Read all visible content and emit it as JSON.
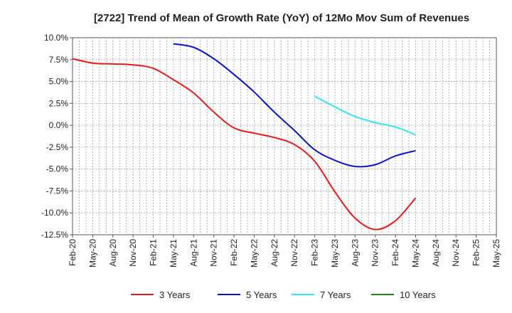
{
  "chart_data": {
    "type": "line",
    "title": "[2722]  Trend of Mean of Growth Rate (YoY) of 12Mo Mov Sum of Revenues",
    "xlabel": "",
    "ylabel": "",
    "categories": [
      "Feb-20",
      "May-20",
      "Aug-20",
      "Nov-20",
      "Feb-21",
      "May-21",
      "Aug-21",
      "Nov-21",
      "Feb-22",
      "May-22",
      "Aug-22",
      "Nov-22",
      "Feb-23",
      "May-23",
      "Aug-23",
      "Nov-23",
      "Feb-24",
      "May-24",
      "Aug-24",
      "Nov-24",
      "Feb-25",
      "May-25"
    ],
    "ylim": [
      -12.5,
      10.0
    ],
    "yticks": [
      "10.0%",
      "7.5%",
      "5.0%",
      "2.5%",
      "0.0%",
      "-2.5%",
      "-5.0%",
      "-7.5%",
      "-10.0%",
      "-12.5%"
    ],
    "grid": true,
    "legend_position": "bottom",
    "series": [
      {
        "name": "3 Years",
        "color": "#e31a1c",
        "values": [
          7.6,
          7.1,
          7.0,
          6.9,
          6.5,
          5.2,
          3.7,
          1.5,
          -0.3,
          -0.9,
          -1.4,
          -2.2,
          -4.1,
          -7.6,
          -10.6,
          -11.9,
          -10.9,
          -8.3,
          null,
          null,
          null,
          null
        ]
      },
      {
        "name": "5 Years",
        "color": "#0a14c8",
        "values": [
          null,
          null,
          null,
          null,
          null,
          9.3,
          8.9,
          7.6,
          5.8,
          3.8,
          1.5,
          -0.6,
          -2.8,
          -4.0,
          -4.7,
          -4.5,
          -3.5,
          -2.9,
          null,
          null,
          null,
          null
        ]
      },
      {
        "name": "7 Years",
        "color": "#33e5ee",
        "values": [
          null,
          null,
          null,
          null,
          null,
          null,
          null,
          null,
          null,
          null,
          null,
          null,
          3.3,
          2.1,
          1.0,
          0.3,
          -0.2,
          -1.1,
          null,
          null,
          null,
          null
        ]
      },
      {
        "name": "10 Years",
        "color": "#1a8a1a",
        "values": [
          null,
          null,
          null,
          null,
          null,
          null,
          null,
          null,
          null,
          null,
          null,
          null,
          null,
          null,
          null,
          null,
          null,
          null,
          null,
          null,
          null,
          null
        ]
      }
    ]
  }
}
